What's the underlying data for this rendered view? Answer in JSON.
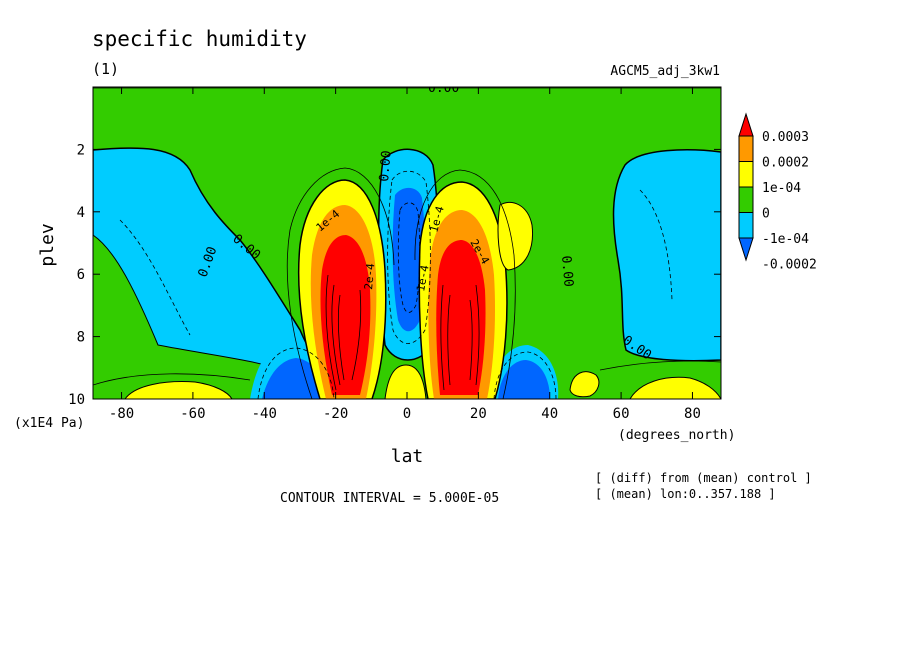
{
  "chart_data": {
    "type": "heatmap",
    "title": "specific humidity",
    "subtitle": "(1)",
    "run_label": "AGCM5_adj_3kw1",
    "xlabel": "lat",
    "xunits": "(degrees_north)",
    "ylabel": "plev",
    "yunits": "(x1E4 Pa)",
    "xlim": [
      -88,
      88
    ],
    "ylim": [
      10,
      0
    ],
    "xticks": [
      "-80",
      "-60",
      "-40",
      "-20",
      "0",
      "20",
      "40",
      "60",
      "80"
    ],
    "yticks": [
      "2",
      "4",
      "6",
      "8",
      "10"
    ],
    "contour_interval": "CONTOUR INTERVAL = 5.000E-05",
    "notes": [
      "[ (diff) from (mean) control ]",
      "[ (mean) lon:0..357.188 ]"
    ],
    "colorbar": {
      "labels": [
        "0.0003",
        "0.0002",
        "1e-04",
        "0",
        "-1e-04",
        "-0.0002"
      ],
      "colors": [
        "#ff0000",
        "#ff9900",
        "#ffff00",
        "#33cc00",
        "#00ccff",
        "#0066ff"
      ]
    },
    "contour_labels": [
      "0.00",
      "0.00",
      "0.00",
      "0.00",
      "0.00",
      "0.00",
      "1e-4",
      "1e-4",
      "2e-4",
      "1e-4",
      "2e-4"
    ],
    "features": [
      {
        "kind": "max",
        "lat": -15,
        "plev": 8.5,
        "value": 0.0003
      },
      {
        "kind": "max",
        "lat": 15,
        "plev": 8.5,
        "value": 0.0003
      },
      {
        "kind": "min",
        "lat": 0,
        "plev": 5.5,
        "value": -0.0002
      },
      {
        "kind": "min",
        "lat": -32,
        "plev": 9.2,
        "value": -0.0002
      },
      {
        "kind": "min",
        "lat": 30,
        "plev": 9.2,
        "value": -0.0002
      },
      {
        "kind": "min",
        "lat": -70,
        "plev": 5,
        "value": -0.0001
      },
      {
        "kind": "min",
        "lat": 72,
        "plev": 5,
        "value": -0.0001
      }
    ]
  }
}
